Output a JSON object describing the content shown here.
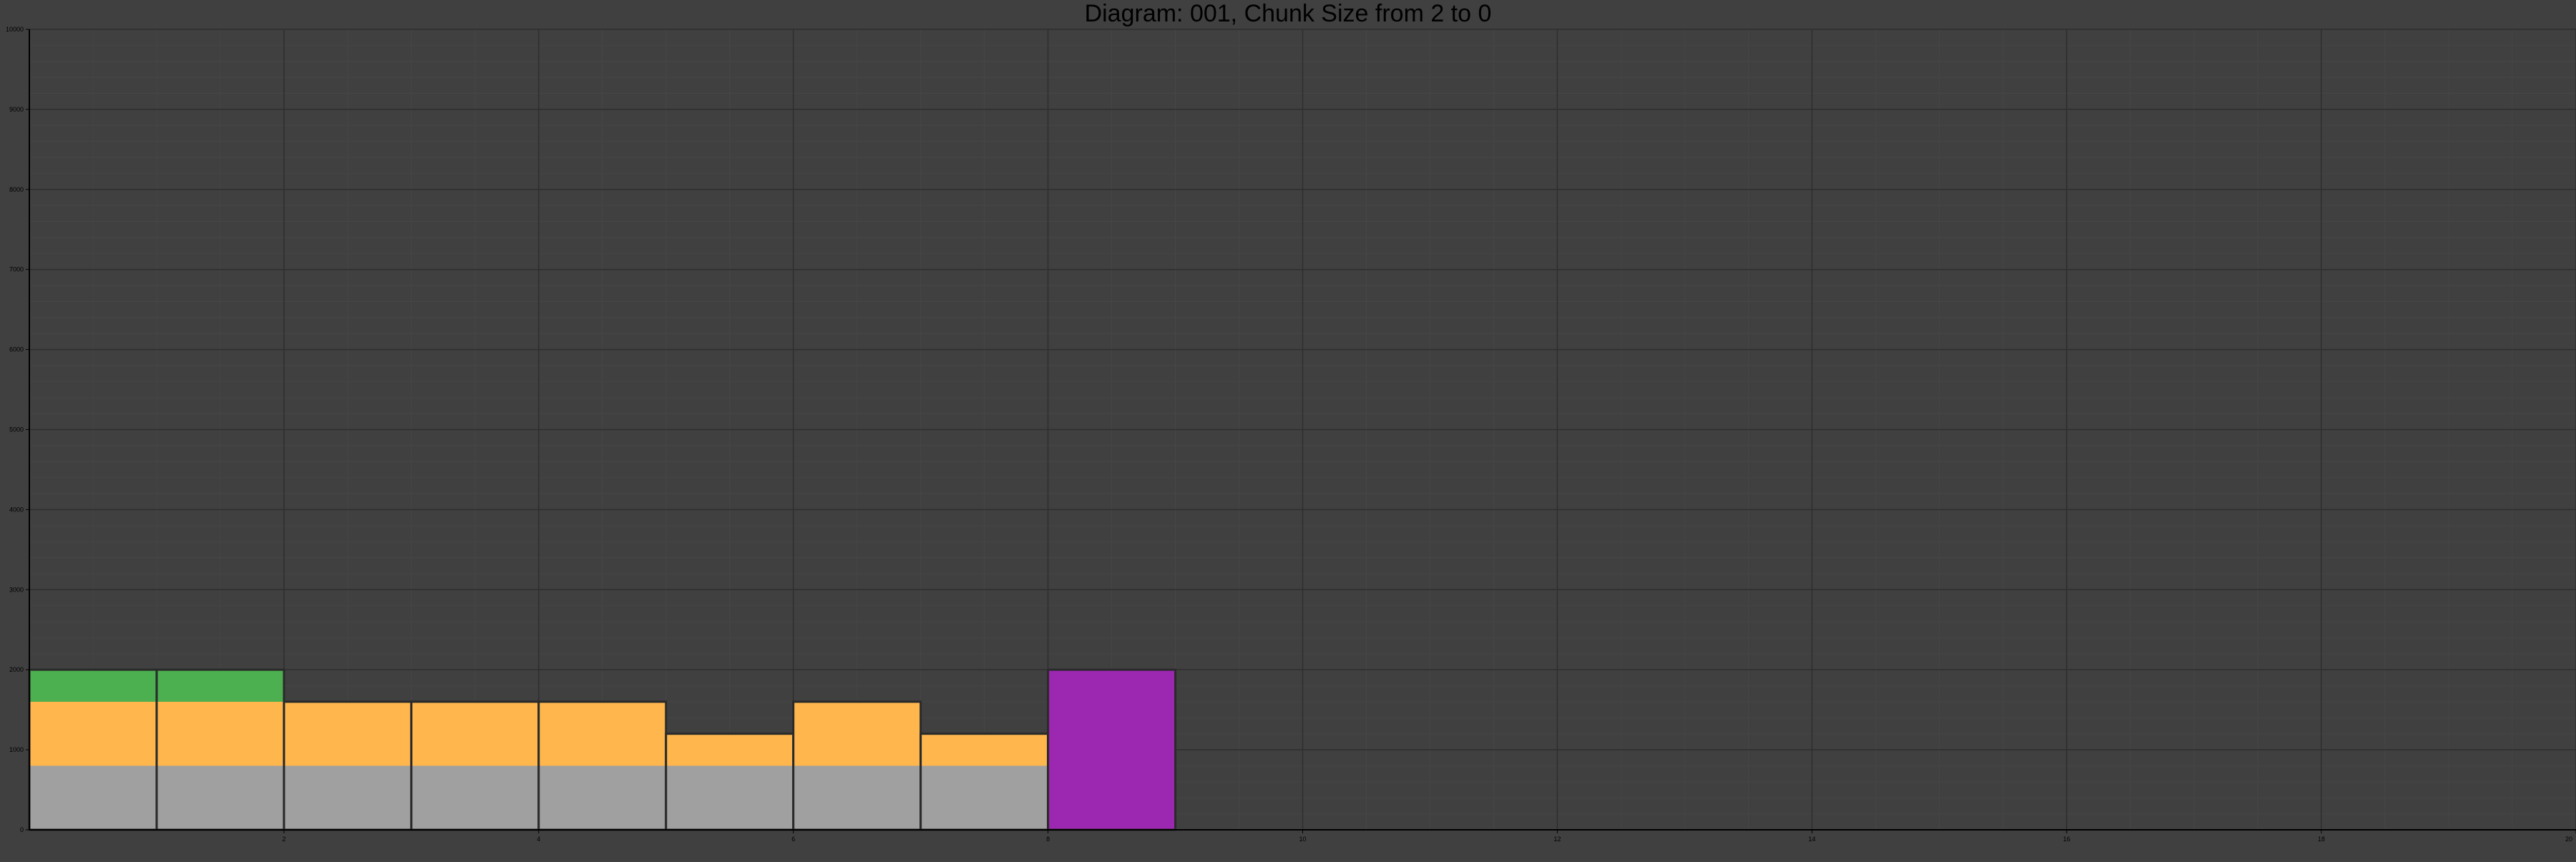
{
  "chart_data": {
    "type": "bar",
    "stacked": true,
    "title": "Diagram: 001, Chunk Size from 2 to 0",
    "xlabel": "",
    "ylabel": "",
    "xlim": [
      0,
      20
    ],
    "ylim": [
      0,
      10000
    ],
    "x_ticks": [
      2,
      4,
      6,
      8,
      10,
      12,
      14,
      16,
      18,
      20
    ],
    "y_ticks": [
      0,
      1000,
      2000,
      3000,
      4000,
      5000,
      6000,
      7000,
      8000,
      9000,
      10000
    ],
    "grid": true,
    "legend": "none",
    "bar_width": 1,
    "bars": [
      {
        "x": 0.5,
        "segments": [
          {
            "value": 800,
            "color": "#a0a0a0"
          },
          {
            "value": 800,
            "color": "#ffb74d"
          },
          {
            "value": 400,
            "color": "#4caf50"
          }
        ]
      },
      {
        "x": 1.5,
        "segments": [
          {
            "value": 800,
            "color": "#a0a0a0"
          },
          {
            "value": 800,
            "color": "#ffb74d"
          },
          {
            "value": 400,
            "color": "#4caf50"
          }
        ]
      },
      {
        "x": 2.5,
        "segments": [
          {
            "value": 800,
            "color": "#a0a0a0"
          },
          {
            "value": 800,
            "color": "#ffb74d"
          }
        ]
      },
      {
        "x": 3.5,
        "segments": [
          {
            "value": 800,
            "color": "#a0a0a0"
          },
          {
            "value": 800,
            "color": "#ffb74d"
          }
        ]
      },
      {
        "x": 4.5,
        "segments": [
          {
            "value": 800,
            "color": "#a0a0a0"
          },
          {
            "value": 800,
            "color": "#ffb74d"
          }
        ]
      },
      {
        "x": 5.5,
        "segments": [
          {
            "value": 800,
            "color": "#a0a0a0"
          },
          {
            "value": 400,
            "color": "#ffb74d"
          }
        ]
      },
      {
        "x": 6.5,
        "segments": [
          {
            "value": 800,
            "color": "#a0a0a0"
          },
          {
            "value": 800,
            "color": "#ffb74d"
          }
        ]
      },
      {
        "x": 7.5,
        "segments": [
          {
            "value": 800,
            "color": "#a0a0a0"
          },
          {
            "value": 400,
            "color": "#ffb74d"
          }
        ]
      },
      {
        "x": 8.5,
        "segments": [
          {
            "value": 2000,
            "color": "#9c27b0"
          }
        ]
      }
    ],
    "colors": {
      "background": "#404040",
      "grid_major": "#2e2e2e",
      "grid_minor": "#464646",
      "axis": "#000000",
      "bar_edge": "#2a2a2a"
    }
  }
}
